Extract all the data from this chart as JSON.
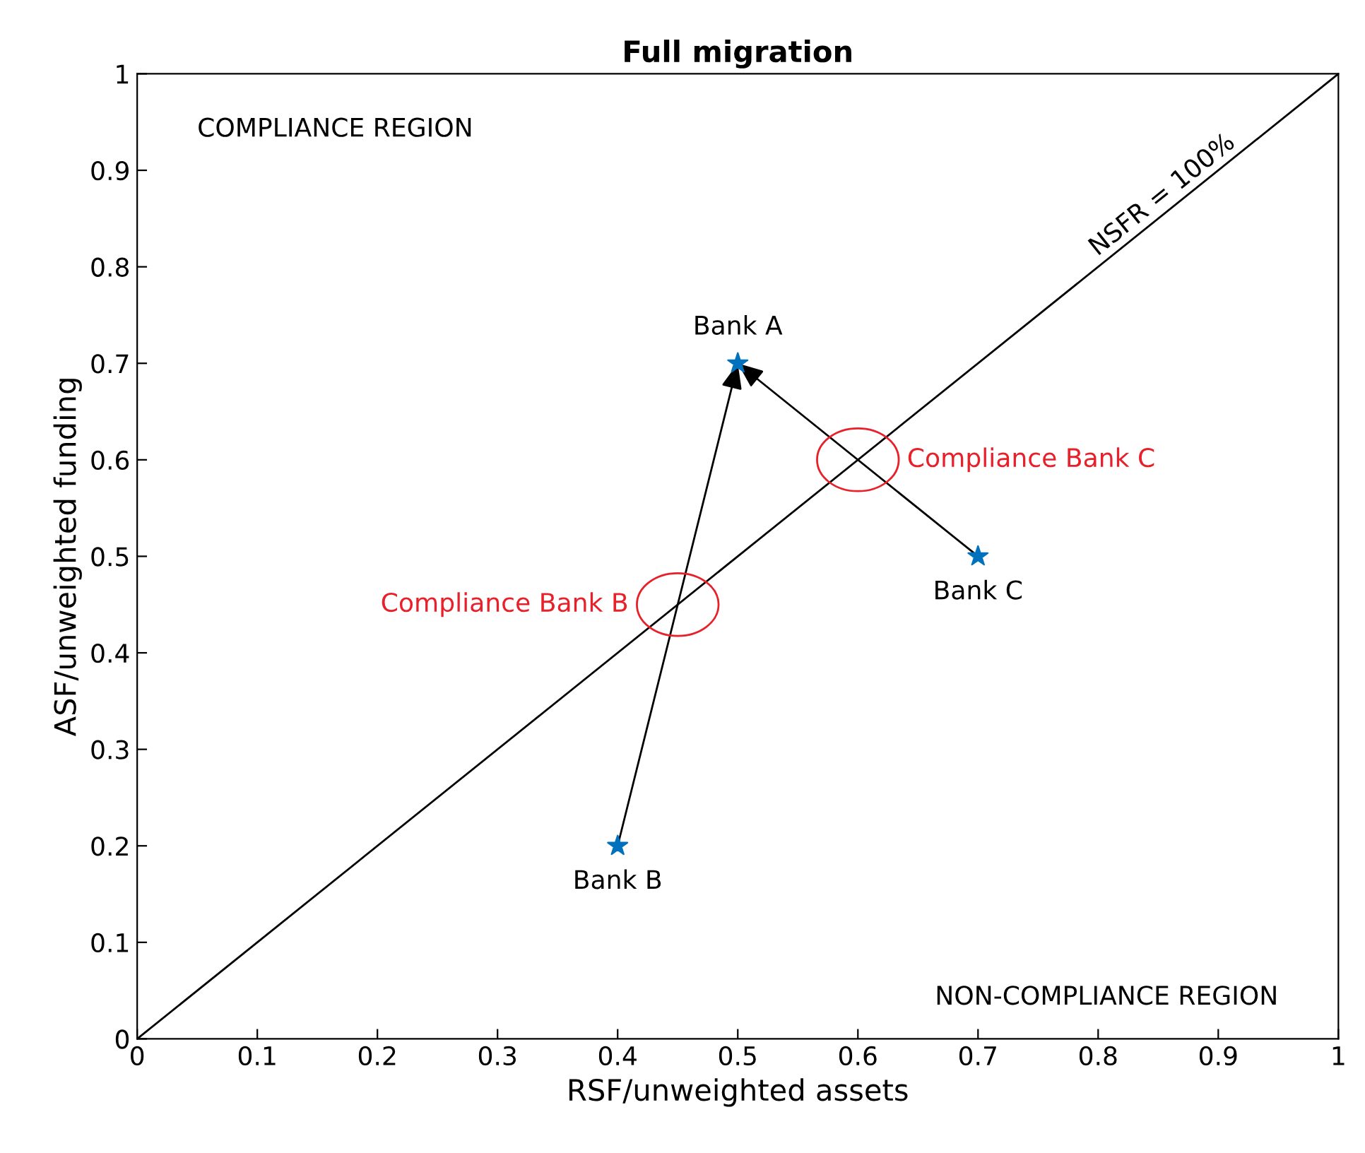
{
  "chart_data": {
    "type": "scatter",
    "title": "Full migration",
    "xlabel": "RSF/unweighted assets",
    "ylabel": "ASF/unweighted funding",
    "xlim": [
      0,
      1
    ],
    "ylim": [
      0,
      1
    ],
    "xticks": [
      0,
      0.1,
      0.2,
      0.3,
      0.4,
      0.5,
      0.6,
      0.7,
      0.8,
      0.9,
      1
    ],
    "yticks": [
      0,
      0.1,
      0.2,
      0.3,
      0.4,
      0.5,
      0.6,
      0.7,
      0.8,
      0.9,
      1
    ],
    "grid": false,
    "legend": false,
    "series": [
      {
        "type": "line",
        "color": "#000000",
        "x": [
          0,
          1
        ],
        "values": [
          0,
          1
        ],
        "marker": "none"
      },
      {
        "color": "#0072bd",
        "marker": "star",
        "x": [
          0.5,
          0.4,
          0.7
        ],
        "values": [
          0.7,
          0.2,
          0.5
        ]
      }
    ],
    "annotations": [
      "COMPLIANCE REGION",
      "NON-COMPLIANCE REGION",
      {
        "text": "NSFR = 100%",
        "x": 0.86,
        "y": 0.86
      },
      {
        "text": "Bank A",
        "x": 0.5,
        "y": 0.7
      },
      {
        "text": "Bank B",
        "x": 0.4,
        "y": 0.2
      },
      {
        "text": "Bank C",
        "x": 0.7,
        "y": 0.5
      },
      {
        "text": "Compliance Bank B",
        "x": 0.45,
        "y": 0.45
      },
      {
        "text": "Compliance Bank C",
        "x": 0.6,
        "y": 0.6
      }
    ]
  }
}
